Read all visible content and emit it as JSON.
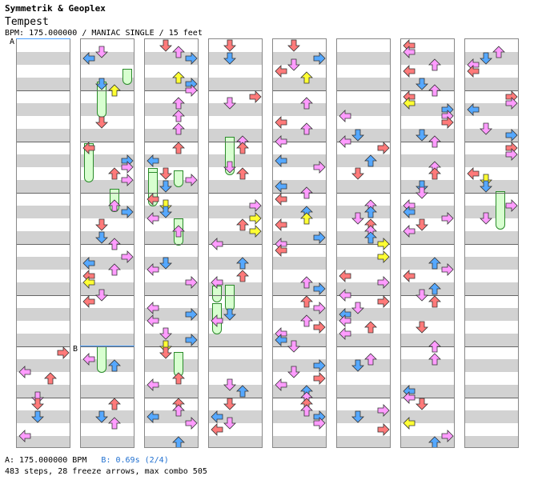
{
  "header": {
    "artist": "Symmetrik & Geoplex",
    "title": "Tempest",
    "info": "BPM: 175.000000 / MANIAC SINGLE / 15 feet"
  },
  "markers": {
    "a": "A",
    "b": "B"
  },
  "footer": {
    "bpm_a": "A: 175.000000 BPM",
    "bpm_b": "B: 0.69s (2/4)",
    "stats": "483 steps, 28 freeze arrows, max combo 505"
  },
  "colors": {
    "quarter": "#ff7a7a",
    "eighth": "#55a8ff",
    "sixteenth": "#ff9cff",
    "other": "#ffff33",
    "freeze_body": "#d8ffd0",
    "freeze_border": "#2a8a2a",
    "bpm_change": "#1f6fd0"
  },
  "chart": {
    "columns": 8,
    "lanes": [
      "left",
      "down",
      "up",
      "right"
    ],
    "note_icons": [
      "left-arrow-icon",
      "down-arrow-icon",
      "up-arrow-icon",
      "right-arrow-icon"
    ],
    "steps": 483,
    "freeze_arrows": 28,
    "max_combo": 505
  }
}
